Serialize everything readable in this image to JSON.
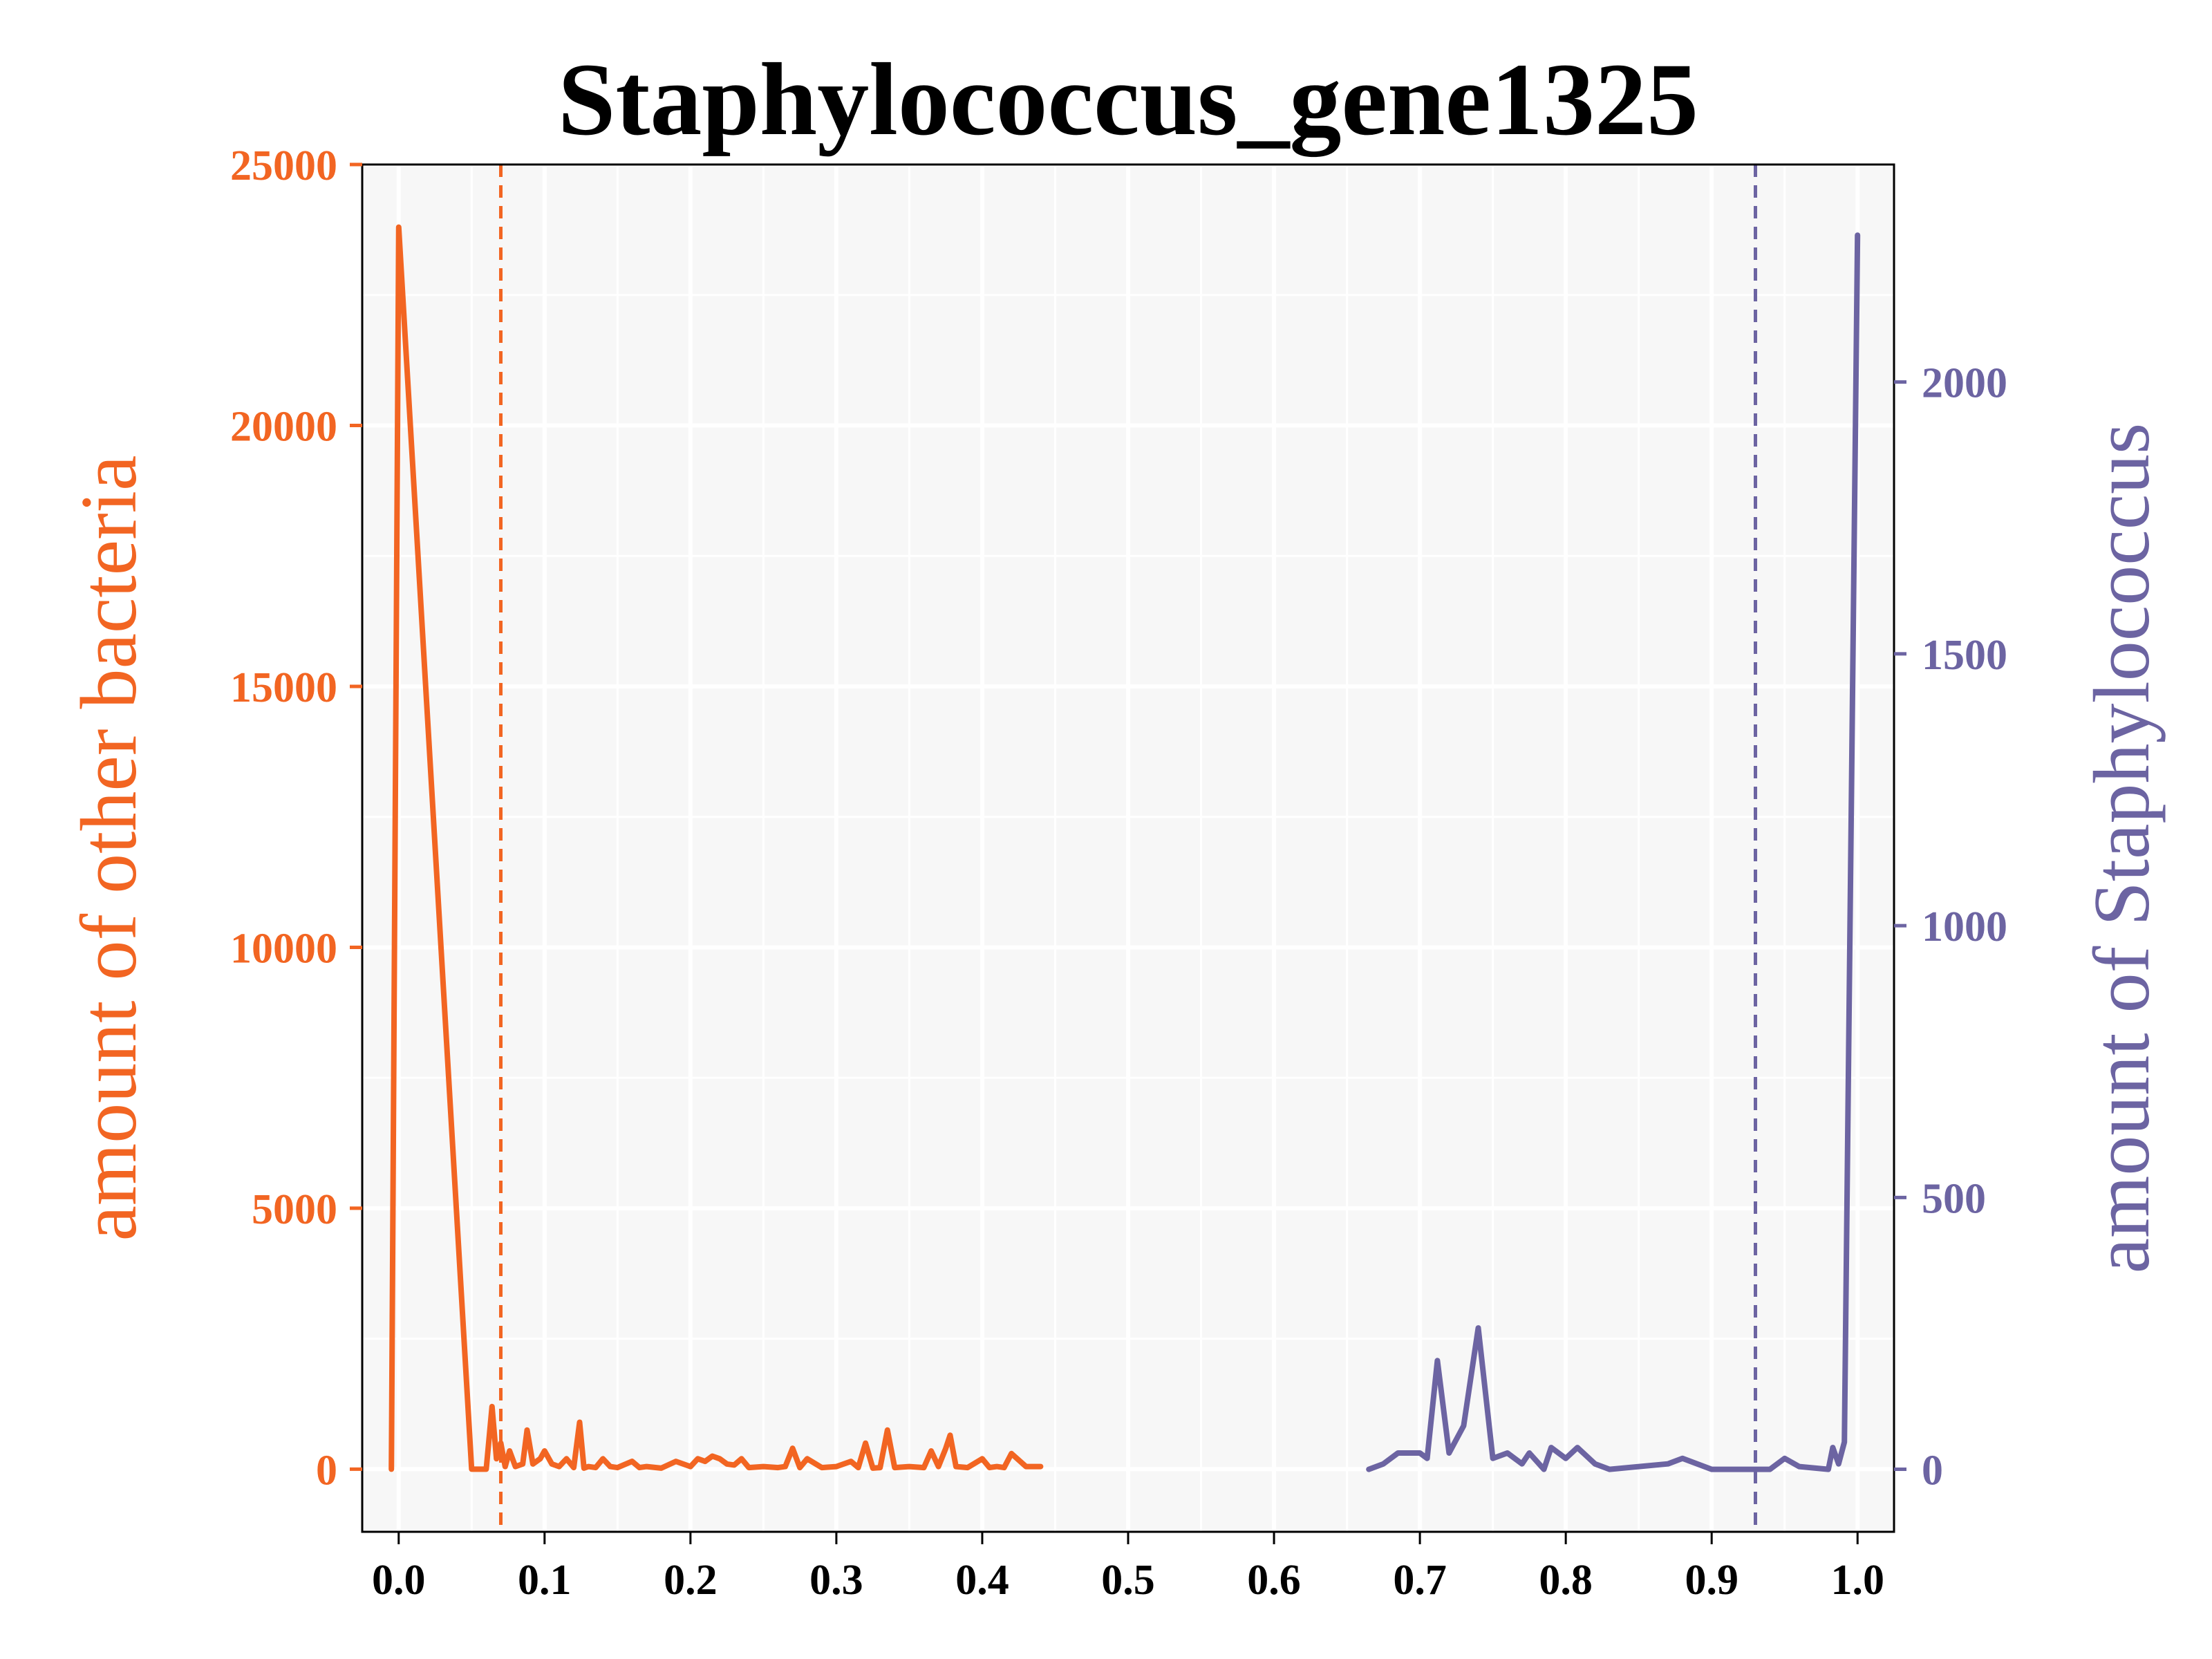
{
  "chart_data": {
    "type": "line",
    "title": "Staphylococcus_gene1325",
    "xlabel": "",
    "ylabel_left": "amount of other bacteria",
    "ylabel_right": "amount of Staphylococcus",
    "xlim": [
      -0.025,
      1.025
    ],
    "ylim_left": [
      -1200,
      25000
    ],
    "ylim_right": [
      -115,
      2400
    ],
    "x_ticks": [
      0.0,
      0.1,
      0.2,
      0.3,
      0.4,
      0.5,
      0.6,
      0.7,
      0.8,
      0.9,
      1.0
    ],
    "x_tick_labels": [
      "0.0",
      "0.1",
      "0.2",
      "0.3",
      "0.4",
      "0.5",
      "0.6",
      "0.7",
      "0.8",
      "0.9",
      "1.0"
    ],
    "y_left_ticks": [
      0,
      5000,
      10000,
      15000,
      20000,
      25000
    ],
    "y_left_tick_labels": [
      "0",
      "5000",
      "10000",
      "15000",
      "20000",
      "25000"
    ],
    "y_right_ticks": [
      0,
      500,
      1000,
      1500,
      2000
    ],
    "y_right_tick_labels": [
      "0",
      "500",
      "1000",
      "1500",
      "2000"
    ],
    "grid": true,
    "colors": {
      "left": "#f26522",
      "right": "#6c64a2",
      "background": "#f7f7f7",
      "grid": "#ffffff"
    },
    "vlines": [
      {
        "x": 0.07,
        "axis": "left"
      },
      {
        "x": 0.93,
        "axis": "right"
      }
    ],
    "series": [
      {
        "axis": "left",
        "x": [
          -0.005,
          0.0,
          0.05,
          0.06,
          0.064,
          0.067,
          0.07,
          0.073,
          0.076,
          0.08,
          0.085,
          0.088,
          0.092,
          0.097,
          0.1,
          0.105,
          0.11,
          0.115,
          0.12,
          0.124,
          0.127,
          0.13,
          0.135,
          0.14,
          0.145,
          0.15,
          0.16,
          0.165,
          0.17,
          0.18,
          0.19,
          0.2,
          0.205,
          0.21,
          0.215,
          0.22,
          0.225,
          0.23,
          0.235,
          0.24,
          0.25,
          0.26,
          0.265,
          0.27,
          0.275,
          0.28,
          0.29,
          0.3,
          0.31,
          0.315,
          0.32,
          0.325,
          0.33,
          0.335,
          0.34,
          0.35,
          0.36,
          0.365,
          0.37,
          0.375,
          0.378,
          0.382,
          0.39,
          0.4,
          0.405,
          0.41,
          0.415,
          0.42,
          0.43,
          0.44
        ],
        "values": [
          0,
          23800,
          0,
          0,
          1200,
          200,
          500,
          50,
          350,
          50,
          100,
          750,
          100,
          200,
          350,
          100,
          50,
          200,
          30,
          900,
          20,
          50,
          30,
          200,
          50,
          30,
          150,
          30,
          50,
          20,
          150,
          50,
          200,
          150,
          250,
          200,
          100,
          80,
          200,
          30,
          50,
          30,
          50,
          400,
          30,
          200,
          30,
          50,
          150,
          30,
          500,
          20,
          30,
          750,
          30,
          50,
          30,
          350,
          50,
          400,
          650,
          50,
          30,
          200,
          30,
          50,
          30,
          300,
          50,
          50
        ]
      },
      {
        "axis": "right",
        "x": [
          0.665,
          0.675,
          0.685,
          0.69,
          0.7,
          0.705,
          0.712,
          0.72,
          0.73,
          0.74,
          0.75,
          0.76,
          0.77,
          0.775,
          0.785,
          0.79,
          0.8,
          0.808,
          0.82,
          0.83,
          0.87,
          0.88,
          0.9,
          0.94,
          0.95,
          0.96,
          0.98,
          0.983,
          0.987,
          0.991,
          1.0
        ],
        "values": [
          0,
          10,
          30,
          30,
          30,
          20,
          200,
          30,
          80,
          260,
          20,
          30,
          10,
          30,
          0,
          40,
          20,
          40,
          10,
          0,
          10,
          20,
          0,
          0,
          20,
          5,
          0,
          40,
          10,
          50,
          2270
        ]
      }
    ]
  }
}
